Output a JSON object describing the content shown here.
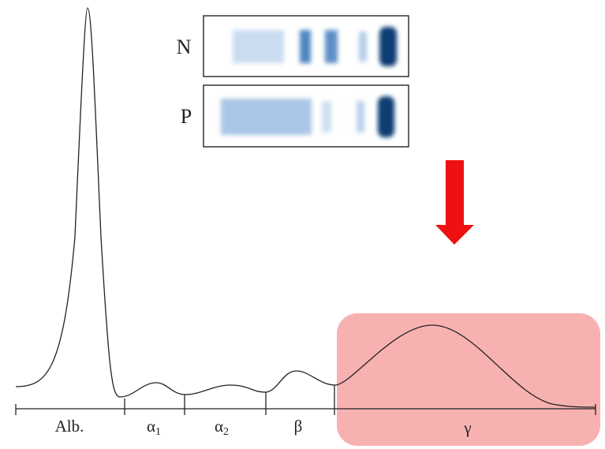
{
  "gel": {
    "lanes": [
      {
        "label": "N"
      },
      {
        "label": "P"
      }
    ]
  },
  "fractions": [
    {
      "label": "Alb."
    },
    {
      "label": "α",
      "subscript": "1"
    },
    {
      "label": "α",
      "subscript": "2"
    },
    {
      "label": "β"
    },
    {
      "label": "γ"
    }
  ]
}
